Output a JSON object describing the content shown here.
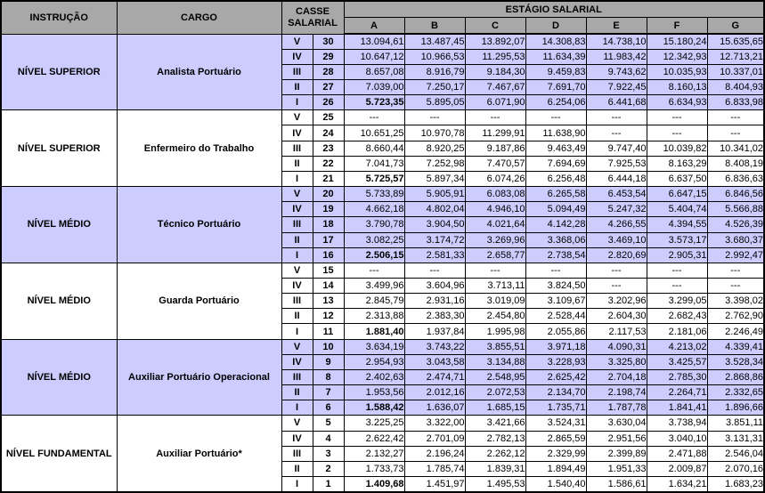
{
  "table": {
    "header": {
      "instrucao": "INSTRUÇÃO",
      "cargo": "CARGO",
      "classe": "CASSE SALARIAL",
      "estagio": "ESTÁGIO SALARIAL",
      "stage_columns": [
        "A",
        "B",
        "C",
        "D",
        "E",
        "F",
        "G"
      ]
    },
    "colors": {
      "header_bg": "#a8a8a8",
      "shaded_row_bg": "#ccccff",
      "plain_row_bg": "#ffffff",
      "border": "#000000"
    },
    "groups": [
      {
        "instrucao": "NÍVEL SUPERIOR",
        "cargo": "Analista Portuário",
        "shaded": true,
        "rows": [
          {
            "classe": "V",
            "nivel": "30",
            "values": [
              "13.094,61",
              "13.487,45",
              "13.892,07",
              "14.308,83",
              "14.738,10",
              "15.180,24",
              "15.635,65"
            ]
          },
          {
            "classe": "IV",
            "nivel": "29",
            "values": [
              "10.647,12",
              "10.966,53",
              "11.295,53",
              "11.634,39",
              "11.983,42",
              "12.342,93",
              "12.713,21"
            ]
          },
          {
            "classe": "III",
            "nivel": "28",
            "values": [
              "8.657,08",
              "8.916,79",
              "9.184,30",
              "9.459,83",
              "9.743,62",
              "10.035,93",
              "10.337,01"
            ]
          },
          {
            "classe": "II",
            "nivel": "27",
            "values": [
              "7.039,00",
              "7.250,17",
              "7.467,67",
              "7.691,70",
              "7.922,45",
              "8.160,13",
              "8.404,93"
            ]
          },
          {
            "classe": "I",
            "nivel": "26",
            "values": [
              "5.723,35",
              "5.895,05",
              "6.071,90",
              "6.254,06",
              "6.441,68",
              "6.634,93",
              "6.833,98"
            ]
          }
        ]
      },
      {
        "instrucao": "NÍVEL SUPERIOR",
        "cargo": "Enfermeiro do Trabalho",
        "shaded": false,
        "rows": [
          {
            "classe": "V",
            "nivel": "25",
            "values": [
              "---",
              "---",
              "---",
              "---",
              "---",
              "---",
              "---"
            ]
          },
          {
            "classe": "IV",
            "nivel": "24",
            "values": [
              "10.651,25",
              "10.970,78",
              "11.299,91",
              "11.638,90",
              "---",
              "---",
              "---"
            ]
          },
          {
            "classe": "III",
            "nivel": "23",
            "values": [
              "8.660,44",
              "8.920,25",
              "9.187,86",
              "9.463,49",
              "9.747,40",
              "10.039,82",
              "10.341,02"
            ]
          },
          {
            "classe": "II",
            "nivel": "22",
            "values": [
              "7.041,73",
              "7.252,98",
              "7.470,57",
              "7.694,69",
              "7.925,53",
              "8.163,29",
              "8.408,19"
            ]
          },
          {
            "classe": "I",
            "nivel": "21",
            "values": [
              "5.725,57",
              "5.897,34",
              "6.074,26",
              "6.256,48",
              "6.444,18",
              "6.637,50",
              "6.836,63"
            ]
          }
        ]
      },
      {
        "instrucao": "NÍVEL MÉDIO",
        "cargo": "Técnico Portuário",
        "shaded": true,
        "rows": [
          {
            "classe": "V",
            "nivel": "20",
            "values": [
              "5.733,89",
              "5.905,91",
              "6.083,08",
              "6.265,58",
              "6.453,54",
              "6.647,15",
              "6.846,56"
            ]
          },
          {
            "classe": "IV",
            "nivel": "19",
            "values": [
              "4.662,18",
              "4.802,04",
              "4.946,10",
              "5.094,49",
              "5.247,32",
              "5.404,74",
              "5.566,88"
            ]
          },
          {
            "classe": "III",
            "nivel": "18",
            "values": [
              "3.790,78",
              "3.904,50",
              "4.021,64",
              "4.142,28",
              "4.266,55",
              "4.394,55",
              "4.526,39"
            ]
          },
          {
            "classe": "II",
            "nivel": "17",
            "values": [
              "3.082,25",
              "3.174,72",
              "3.269,96",
              "3.368,06",
              "3.469,10",
              "3.573,17",
              "3.680,37"
            ]
          },
          {
            "classe": "I",
            "nivel": "16",
            "values": [
              "2.506,15",
              "2.581,33",
              "2.658,77",
              "2.738,54",
              "2.820,69",
              "2.905,31",
              "2.992,47"
            ]
          }
        ]
      },
      {
        "instrucao": "NÍVEL MÉDIO",
        "cargo": "Guarda Portuário",
        "shaded": false,
        "rows": [
          {
            "classe": "V",
            "nivel": "15",
            "values": [
              "---",
              "---",
              "---",
              "---",
              "---",
              "---",
              "---"
            ]
          },
          {
            "classe": "IV",
            "nivel": "14",
            "values": [
              "3.499,96",
              "3.604,96",
              "3.713,11",
              "3.824,50",
              "---",
              "---",
              "---"
            ]
          },
          {
            "classe": "III",
            "nivel": "13",
            "values": [
              "2.845,79",
              "2.931,16",
              "3.019,09",
              "3.109,67",
              "3.202,96",
              "3.299,05",
              "3.398,02"
            ]
          },
          {
            "classe": "II",
            "nivel": "12",
            "values": [
              "2.313,88",
              "2.383,30",
              "2.454,80",
              "2.528,44",
              "2.604,30",
              "2.682,43",
              "2.762,90"
            ]
          },
          {
            "classe": "I",
            "nivel": "11",
            "values": [
              "1.881,40",
              "1.937,84",
              "1.995,98",
              "2.055,86",
              "2.117,53",
              "2.181,06",
              "2.246,49"
            ]
          }
        ]
      },
      {
        "instrucao": "NÍVEL MÉDIO",
        "cargo": "Auxiliar Portuário Operacional",
        "shaded": true,
        "rows": [
          {
            "classe": "V",
            "nivel": "10",
            "values": [
              "3.634,19",
              "3.743,22",
              "3.855,51",
              "3.971,18",
              "4.090,31",
              "4.213,02",
              "4.339,41"
            ]
          },
          {
            "classe": "IV",
            "nivel": "9",
            "values": [
              "2.954,93",
              "3.043,58",
              "3.134,88",
              "3.228,93",
              "3.325,80",
              "3.425,57",
              "3.528,34"
            ]
          },
          {
            "classe": "III",
            "nivel": "8",
            "values": [
              "2.402,63",
              "2.474,71",
              "2.548,95",
              "2.625,42",
              "2.704,18",
              "2.785,30",
              "2.868,86"
            ]
          },
          {
            "classe": "II",
            "nivel": "7",
            "values": [
              "1.953,56",
              "2.012,16",
              "2.072,53",
              "2.134,70",
              "2.198,74",
              "2.264,71",
              "2.332,65"
            ]
          },
          {
            "classe": "I",
            "nivel": "6",
            "values": [
              "1.588,42",
              "1.636,07",
              "1.685,15",
              "1.735,71",
              "1.787,78",
              "1.841,41",
              "1.896,66"
            ]
          }
        ]
      },
      {
        "instrucao": "NÍVEL FUNDAMENTAL",
        "cargo": "Auxiliar Portuário*",
        "shaded": false,
        "rows": [
          {
            "classe": "V",
            "nivel": "5",
            "values": [
              "3.225,25",
              "3.322,00",
              "3.421,66",
              "3.524,31",
              "3.630,04",
              "3.738,94",
              "3.851,11"
            ]
          },
          {
            "classe": "IV",
            "nivel": "4",
            "values": [
              "2.622,42",
              "2.701,09",
              "2.782,13",
              "2.865,59",
              "2.951,56",
              "3.040,10",
              "3.131,31"
            ]
          },
          {
            "classe": "III",
            "nivel": "3",
            "values": [
              "2.132,27",
              "2.196,24",
              "2.262,12",
              "2.329,99",
              "2.399,89",
              "2.471,88",
              "2.546,04"
            ]
          },
          {
            "classe": "II",
            "nivel": "2",
            "values": [
              "1.733,73",
              "1.785,74",
              "1.839,31",
              "1.894,49",
              "1.951,33",
              "2.009,87",
              "2.070,16"
            ]
          },
          {
            "classe": "I",
            "nivel": "1",
            "values": [
              "1.409,68",
              "1.451,97",
              "1.495,53",
              "1.540,40",
              "1.586,61",
              "1.634,21",
              "1.683,23"
            ]
          }
        ]
      }
    ]
  }
}
